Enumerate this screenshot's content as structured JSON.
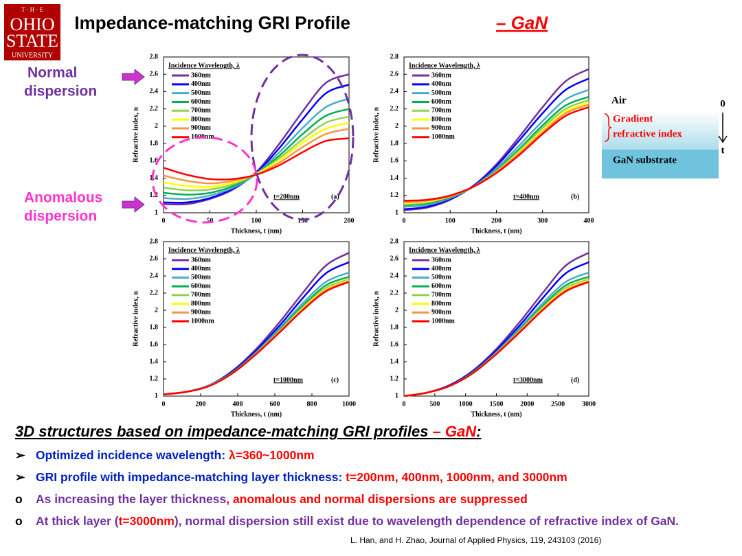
{
  "header": {
    "logo": [
      "T · H · E",
      "OHIO",
      "STATE",
      "UNIVERSITY"
    ],
    "title": "Impedance-matching GRI Profile",
    "title_highlight": "– GaN"
  },
  "annotations": {
    "normal": [
      "Normal",
      "dispersion"
    ],
    "anomalous": [
      "Anomalous",
      "dispersion"
    ]
  },
  "diagram": {
    "air": "Air",
    "gradient": [
      "Gradient",
      "refractive index"
    ],
    "substrate": "GaN substrate",
    "origin": "0",
    "axis": "t"
  },
  "chart_data": [
    {
      "type": "line",
      "x": [
        0,
        25,
        50,
        75,
        100,
        125,
        150,
        175,
        200
      ],
      "xlim": [
        0,
        200
      ],
      "xticks": [
        0,
        50,
        100,
        150,
        200
      ],
      "ylim": [
        1,
        2.8
      ],
      "yticks": [
        1,
        1.2,
        1.4,
        1.6,
        1.8,
        2,
        2.2,
        2.4,
        2.6,
        2.8
      ],
      "x_label": "Thickness, t (nm)",
      "y_label": "Refractive index, n",
      "legend_title": "Incidence Wavelength, λ",
      "annotation": "t=200nm",
      "panel": "(a)",
      "series": [
        {
          "name": "360nm",
          "color": "#7030a0",
          "values": [
            1.1,
            1.1,
            1.16,
            1.27,
            1.47,
            1.8,
            2.17,
            2.5,
            2.6
          ]
        },
        {
          "name": "400nm",
          "color": "#0000ff",
          "values": [
            1.12,
            1.12,
            1.17,
            1.28,
            1.46,
            1.75,
            2.08,
            2.38,
            2.48
          ]
        },
        {
          "name": "500nm",
          "color": "#4bacc6",
          "values": [
            1.17,
            1.16,
            1.2,
            1.29,
            1.45,
            1.7,
            1.98,
            2.22,
            2.32
          ]
        },
        {
          "name": "600nm",
          "color": "#00b050",
          "values": [
            1.23,
            1.21,
            1.23,
            1.31,
            1.45,
            1.66,
            1.91,
            2.12,
            2.2
          ]
        },
        {
          "name": "700nm",
          "color": "#92d050",
          "values": [
            1.29,
            1.26,
            1.27,
            1.33,
            1.45,
            1.63,
            1.85,
            2.04,
            2.11
          ]
        },
        {
          "name": "800nm",
          "color": "#ffff00",
          "values": [
            1.35,
            1.31,
            1.3,
            1.35,
            1.45,
            1.61,
            1.81,
            1.97,
            2.04
          ]
        },
        {
          "name": "900nm",
          "color": "#f79646",
          "values": [
            1.43,
            1.37,
            1.34,
            1.37,
            1.44,
            1.58,
            1.76,
            1.91,
            1.97
          ]
        },
        {
          "name": "1000nm",
          "color": "#ff0000",
          "values": [
            1.52,
            1.44,
            1.39,
            1.39,
            1.44,
            1.55,
            1.7,
            1.83,
            1.86
          ]
        }
      ]
    },
    {
      "type": "line",
      "x": [
        0,
        50,
        100,
        150,
        200,
        250,
        300,
        350,
        400
      ],
      "xlim": [
        0,
        400
      ],
      "xticks": [
        0,
        100,
        200,
        300,
        400
      ],
      "ylim": [
        1,
        2.8
      ],
      "yticks": [
        1,
        1.2,
        1.4,
        1.6,
        1.8,
        2,
        2.2,
        2.4,
        2.6,
        2.8
      ],
      "x_label": "Thickness, t (nm)",
      "y_label": "Refractive index, n",
      "legend_title": "Incidence Wavelength, λ",
      "annotation": "t=400nm",
      "panel": "(b)",
      "series": [
        {
          "name": "360nm",
          "color": "#7030a0",
          "values": [
            1.03,
            1.06,
            1.15,
            1.31,
            1.56,
            1.88,
            2.22,
            2.52,
            2.66
          ]
        },
        {
          "name": "400nm",
          "color": "#0000ff",
          "values": [
            1.04,
            1.07,
            1.16,
            1.31,
            1.54,
            1.84,
            2.15,
            2.42,
            2.55
          ]
        },
        {
          "name": "500nm",
          "color": "#4bacc6",
          "values": [
            1.07,
            1.09,
            1.17,
            1.3,
            1.51,
            1.78,
            2.06,
            2.31,
            2.42
          ]
        },
        {
          "name": "600nm",
          "color": "#00b050",
          "values": [
            1.09,
            1.11,
            1.18,
            1.3,
            1.49,
            1.74,
            2.01,
            2.24,
            2.34
          ]
        },
        {
          "name": "700nm",
          "color": "#92d050",
          "values": [
            1.1,
            1.12,
            1.19,
            1.3,
            1.48,
            1.72,
            1.98,
            2.2,
            2.3
          ]
        },
        {
          "name": "800nm",
          "color": "#ffff00",
          "values": [
            1.11,
            1.13,
            1.19,
            1.3,
            1.47,
            1.7,
            1.95,
            2.17,
            2.27
          ]
        },
        {
          "name": "900nm",
          "color": "#f79646",
          "values": [
            1.12,
            1.14,
            1.19,
            1.3,
            1.47,
            1.69,
            1.93,
            2.15,
            2.25
          ]
        },
        {
          "name": "1000nm",
          "color": "#ff0000",
          "values": [
            1.14,
            1.15,
            1.2,
            1.3,
            1.46,
            1.67,
            1.91,
            2.12,
            2.22
          ]
        }
      ]
    },
    {
      "type": "line",
      "x": [
        0,
        125,
        250,
        375,
        500,
        625,
        750,
        875,
        1000
      ],
      "xlim": [
        0,
        1000
      ],
      "xticks": [
        0,
        200,
        400,
        600,
        800,
        1000
      ],
      "ylim": [
        1,
        2.8
      ],
      "yticks": [
        1,
        1.2,
        1.4,
        1.6,
        1.8,
        2,
        2.2,
        2.4,
        2.6,
        2.8
      ],
      "x_label": "Thickness, t (nm)",
      "y_label": "Refractive index, n",
      "legend_title": "Incidence Wavelength, λ",
      "annotation": "t=1000nm",
      "panel": "(c)",
      "series": [
        {
          "name": "360nm",
          "color": "#7030a0",
          "values": [
            1.02,
            1.05,
            1.13,
            1.3,
            1.55,
            1.86,
            2.2,
            2.52,
            2.67
          ]
        },
        {
          "name": "400nm",
          "color": "#0000ff",
          "values": [
            1.02,
            1.05,
            1.13,
            1.29,
            1.53,
            1.82,
            2.14,
            2.43,
            2.56
          ]
        },
        {
          "name": "500nm",
          "color": "#4bacc6",
          "values": [
            1.02,
            1.05,
            1.13,
            1.28,
            1.51,
            1.79,
            2.08,
            2.33,
            2.44
          ]
        },
        {
          "name": "600nm",
          "color": "#00b050",
          "values": [
            1.02,
            1.05,
            1.12,
            1.28,
            1.5,
            1.77,
            2.05,
            2.29,
            2.39
          ]
        },
        {
          "name": "700nm",
          "color": "#92d050",
          "values": [
            1.02,
            1.05,
            1.12,
            1.27,
            1.5,
            1.76,
            2.03,
            2.26,
            2.36
          ]
        },
        {
          "name": "800nm",
          "color": "#ffff00",
          "values": [
            1.02,
            1.05,
            1.12,
            1.27,
            1.49,
            1.75,
            2.02,
            2.24,
            2.35
          ]
        },
        {
          "name": "900nm",
          "color": "#f79646",
          "values": [
            1.02,
            1.05,
            1.12,
            1.27,
            1.49,
            1.75,
            2.01,
            2.23,
            2.34
          ]
        },
        {
          "name": "1000nm",
          "color": "#ff0000",
          "values": [
            1.02,
            1.05,
            1.12,
            1.27,
            1.49,
            1.74,
            2.0,
            2.22,
            2.33
          ]
        }
      ]
    },
    {
      "type": "line",
      "x": [
        0,
        375,
        750,
        1125,
        1500,
        1875,
        2250,
        2625,
        3000
      ],
      "xlim": [
        0,
        3000
      ],
      "xticks": [
        0,
        500,
        1000,
        1500,
        2000,
        2500,
        3000
      ],
      "ylim": [
        1,
        2.8
      ],
      "yticks": [
        1,
        1.2,
        1.4,
        1.6,
        1.8,
        2,
        2.2,
        2.4,
        2.6,
        2.8
      ],
      "x_label": "Thickness, t (nm)",
      "y_label": "Refractive index, n",
      "legend_title": "Incidence Wavelength, λ",
      "annotation": "t=3000nm",
      "panel": "(d)",
      "series": [
        {
          "name": "360nm",
          "color": "#7030a0",
          "values": [
            1.0,
            1.04,
            1.13,
            1.3,
            1.55,
            1.86,
            2.2,
            2.52,
            2.67
          ]
        },
        {
          "name": "400nm",
          "color": "#0000ff",
          "values": [
            1.0,
            1.04,
            1.13,
            1.29,
            1.53,
            1.82,
            2.14,
            2.43,
            2.56
          ]
        },
        {
          "name": "500nm",
          "color": "#4bacc6",
          "values": [
            1.0,
            1.04,
            1.12,
            1.28,
            1.51,
            1.79,
            2.08,
            2.33,
            2.44
          ]
        },
        {
          "name": "600nm",
          "color": "#00b050",
          "values": [
            1.0,
            1.04,
            1.12,
            1.28,
            1.5,
            1.77,
            2.05,
            2.29,
            2.39
          ]
        },
        {
          "name": "700nm",
          "color": "#92d050",
          "values": [
            1.0,
            1.04,
            1.12,
            1.27,
            1.5,
            1.76,
            2.03,
            2.26,
            2.36
          ]
        },
        {
          "name": "800nm",
          "color": "#ffff00",
          "values": [
            1.0,
            1.04,
            1.12,
            1.27,
            1.49,
            1.75,
            2.02,
            2.24,
            2.35
          ]
        },
        {
          "name": "900nm",
          "color": "#f79646",
          "values": [
            1.0,
            1.04,
            1.12,
            1.27,
            1.49,
            1.75,
            2.01,
            2.23,
            2.34
          ]
        },
        {
          "name": "1000nm",
          "color": "#ff0000",
          "values": [
            1.0,
            1.04,
            1.12,
            1.27,
            1.49,
            1.74,
            2.0,
            2.22,
            2.33
          ]
        }
      ]
    }
  ],
  "body": {
    "heading": [
      {
        "text": "3D structures based on impedance-matching GRI profiles ",
        "color": "#000000"
      },
      {
        "text": "– GaN",
        "color": "#ff0000"
      },
      {
        "text": ":",
        "color": "#000000"
      }
    ],
    "bullets": [
      {
        "marker": "➢",
        "segments": [
          {
            "text": "Optimized incidence wavelength: ",
            "color": "#0020c0"
          },
          {
            "text": "λ=360~1000nm",
            "color": "#ff0000"
          }
        ]
      },
      {
        "marker": "➢",
        "segments": [
          {
            "text": "GRI profile with impedance-matching layer thickness: ",
            "color": "#0020c0"
          },
          {
            "text": "t=200nm, 400nm, 1000nm, and 3000nm",
            "color": "#ff0000"
          }
        ]
      },
      {
        "marker": "o",
        "segments": [
          {
            "text": "As increasing the layer thickness",
            "color": "#7030a0"
          },
          {
            "text": ", anomalous and normal dispersions are suppressed",
            "color": "#ff0000"
          }
        ]
      },
      {
        "marker": "o",
        "segments": [
          {
            "text": "At thick layer (",
            "color": "#7030a0"
          },
          {
            "text": "t=3000nm",
            "color": "#ff0000"
          },
          {
            "text": "), normal dispersion still exist due to wavelength dependence of refractive index of GaN.",
            "color": "#7030a0"
          }
        ]
      }
    ],
    "citation": "L. Han, and H. Zhao, Journal of Applied Physics, 119, 243103 (2016)"
  }
}
